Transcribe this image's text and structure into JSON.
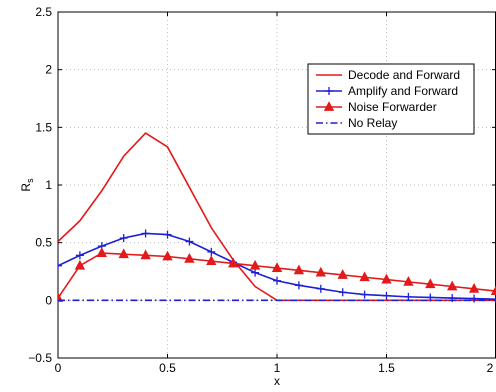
{
  "chart_data": {
    "type": "line",
    "title": "",
    "xlabel": "x",
    "ylabel": "R",
    "ylabel_subscript": "s",
    "xlim": [
      0,
      2
    ],
    "ylim": [
      -0.5,
      2.5
    ],
    "xticks": [
      0,
      0.5,
      1,
      1.5,
      2
    ],
    "xtick_labels": [
      "0",
      "0.5",
      "1",
      "1.5",
      "2"
    ],
    "yticks": [
      -0.5,
      0,
      0.5,
      1,
      1.5,
      2,
      2.5
    ],
    "ytick_labels": [
      "−0.5",
      "0",
      "0.5",
      "1",
      "1.5",
      "2",
      "2.5"
    ],
    "grid": true,
    "legend_position": "top-right",
    "series": [
      {
        "name": "Decode and Forward",
        "color": "#e31a1c",
        "marker": "none",
        "dash": "solid",
        "x": [
          0,
          0.1,
          0.2,
          0.3,
          0.4,
          0.5,
          0.6,
          0.7,
          0.8,
          0.9,
          1.0,
          1.1,
          1.2,
          1.3,
          1.4,
          1.5,
          1.6,
          1.7,
          1.8,
          1.9,
          2.0
        ],
        "y": [
          0.51,
          0.69,
          0.95,
          1.25,
          1.45,
          1.33,
          0.98,
          0.63,
          0.35,
          0.12,
          0.0,
          0.0,
          0.0,
          0.0,
          0.0,
          0.0,
          0.0,
          0.0,
          0.0,
          0.0,
          0.0
        ]
      },
      {
        "name": "Amplify and Forward",
        "color": "#1f1fd6",
        "marker": "plus",
        "dash": "solid",
        "x": [
          0,
          0.1,
          0.2,
          0.3,
          0.4,
          0.5,
          0.6,
          0.7,
          0.8,
          0.9,
          1.0,
          1.1,
          1.2,
          1.3,
          1.4,
          1.5,
          1.6,
          1.7,
          1.8,
          1.9,
          2.0
        ],
        "y": [
          0.3,
          0.39,
          0.47,
          0.54,
          0.58,
          0.57,
          0.51,
          0.42,
          0.33,
          0.24,
          0.17,
          0.13,
          0.1,
          0.07,
          0.05,
          0.04,
          0.03,
          0.025,
          0.02,
          0.015,
          0.01
        ]
      },
      {
        "name": "Noise Forwarder",
        "color": "#e31a1c",
        "marker": "triangle",
        "dash": "solid",
        "x": [
          0,
          0.1,
          0.2,
          0.3,
          0.4,
          0.5,
          0.6,
          0.7,
          0.8,
          0.9,
          1.0,
          1.1,
          1.2,
          1.3,
          1.4,
          1.5,
          1.6,
          1.7,
          1.8,
          1.9,
          2.0
        ],
        "y": [
          0.02,
          0.3,
          0.41,
          0.4,
          0.39,
          0.38,
          0.36,
          0.34,
          0.32,
          0.3,
          0.28,
          0.26,
          0.24,
          0.22,
          0.2,
          0.18,
          0.16,
          0.14,
          0.12,
          0.1,
          0.08
        ]
      },
      {
        "name": "No Relay",
        "color": "#1f1fd6",
        "marker": "none",
        "dash": "dashdot",
        "x": [
          0,
          2
        ],
        "y": [
          0,
          0
        ]
      }
    ]
  }
}
